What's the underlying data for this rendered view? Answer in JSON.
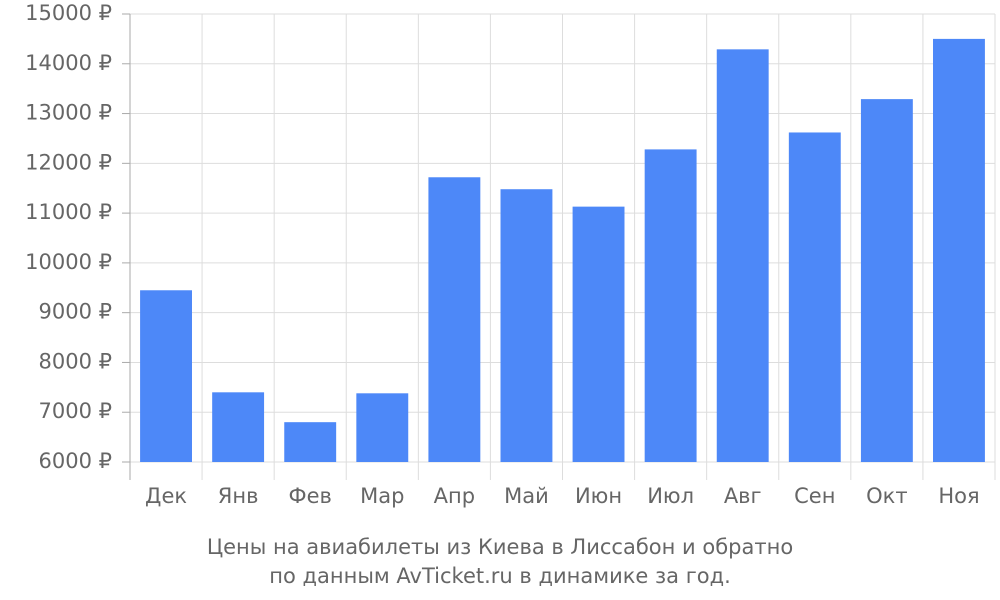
{
  "chart_data": {
    "type": "bar",
    "title": "Цены на авиабилеты из Киева в Лиссабон и обратно",
    "subtitle": "по данным AvTicket.ru в динамике за год.",
    "categories": [
      "Дек",
      "Янв",
      "Фев",
      "Мар",
      "Апр",
      "Май",
      "Июн",
      "Июл",
      "Авг",
      "Сен",
      "Окт",
      "Ноя"
    ],
    "values": [
      9450,
      7400,
      6800,
      7380,
      11720,
      11480,
      11130,
      12280,
      14290,
      12620,
      13290,
      14500
    ],
    "color": "#4d88f8",
    "ylim": [
      6000,
      15000
    ],
    "yticks": [
      {
        "value": 6000,
        "label": "6000 ₽"
      },
      {
        "value": 7000,
        "label": "7000 ₽"
      },
      {
        "value": 8000,
        "label": "8000 ₽"
      },
      {
        "value": 9000,
        "label": "9000 ₽"
      },
      {
        "value": 10000,
        "label": "10000 ₽"
      },
      {
        "value": 11000,
        "label": "11000 ₽"
      },
      {
        "value": 12000,
        "label": "12000 ₽"
      },
      {
        "value": 13000,
        "label": "13000 ₽"
      },
      {
        "value": 14000,
        "label": "14000 ₽"
      },
      {
        "value": 15000,
        "label": "15000 ₽"
      }
    ],
    "grid": true
  }
}
